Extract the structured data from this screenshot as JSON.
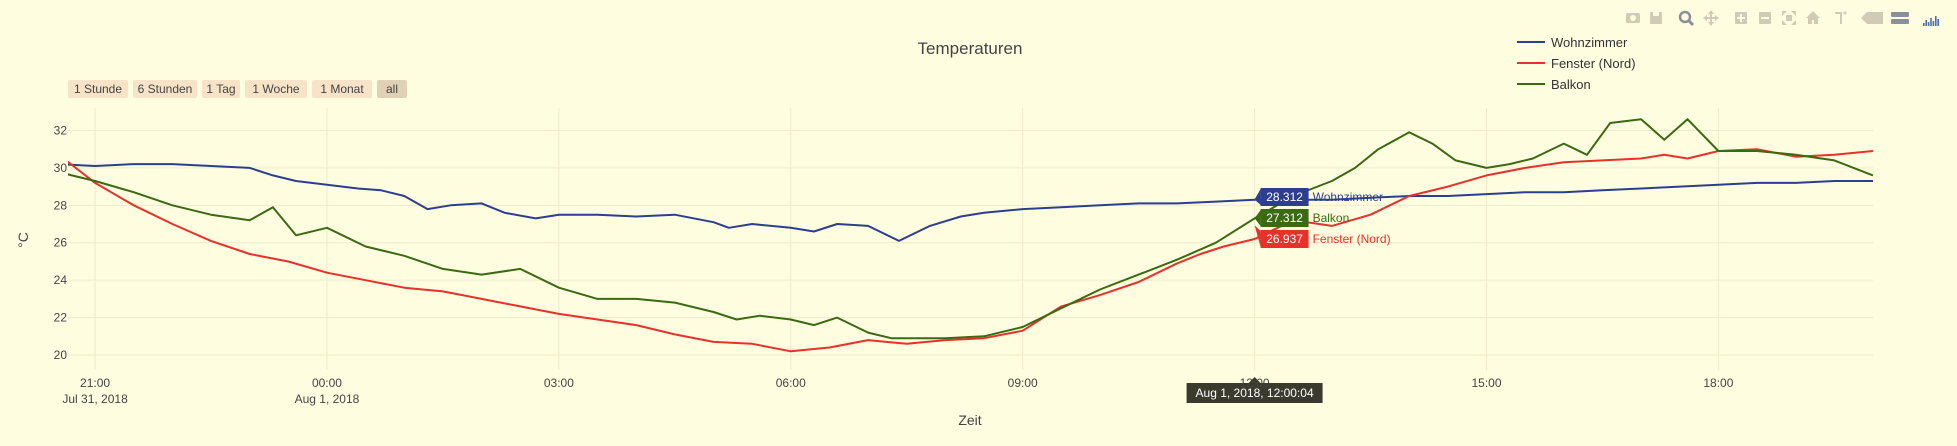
{
  "chart_data": {
    "type": "line",
    "title": "Temperaturen",
    "xlabel": "Zeit",
    "ylabel": "°C",
    "ylim": [
      19.2,
      33.2
    ],
    "xlim": [
      -0.35,
      23.0
    ],
    "y_ticks": [
      20,
      22,
      24,
      26,
      28,
      30,
      32
    ],
    "x_ticks": [
      {
        "value": 0,
        "label": "21:00",
        "sublabel": "Jul 31, 2018"
      },
      {
        "value": 3,
        "label": "00:00",
        "sublabel": "Aug 1, 2018"
      },
      {
        "value": 6,
        "label": "03:00",
        "sublabel": ""
      },
      {
        "value": 9,
        "label": "06:00",
        "sublabel": ""
      },
      {
        "value": 12,
        "label": "09:00",
        "sublabel": ""
      },
      {
        "value": 15,
        "label": "12:00",
        "sublabel": ""
      },
      {
        "value": 18,
        "label": "15:00",
        "sublabel": ""
      },
      {
        "value": 21,
        "label": "18:00",
        "sublabel": ""
      }
    ],
    "grid": true,
    "legend_position": "top-right",
    "range_buttons": [
      "1 Stunde",
      "6 Stunden",
      "1 Tag",
      "1 Woche",
      "1 Monat",
      "all"
    ],
    "active_range_button": "all",
    "hover": {
      "x_label": "Aug 1, 2018, 12:00:04",
      "x": 15.0,
      "items": [
        {
          "series": "Wohnzimmer",
          "value": "28.312",
          "y": 28.312
        },
        {
          "series": "Balkon",
          "value": "27.312",
          "y": 27.312
        },
        {
          "series": "Fenster (Nord)",
          "value": "26.937",
          "y": 26.937
        }
      ]
    },
    "series": [
      {
        "name": "Wohnzimmer",
        "color": "#2c3e8f",
        "x": [
          -0.5,
          0.0,
          0.5,
          1.0,
          1.5,
          2.0,
          2.3,
          2.6,
          3.0,
          3.4,
          3.7,
          4.0,
          4.3,
          4.6,
          5.0,
          5.3,
          5.7,
          6.0,
          6.5,
          7.0,
          7.5,
          8.0,
          8.2,
          8.5,
          9.0,
          9.3,
          9.6,
          10.0,
          10.4,
          10.8,
          11.2,
          11.5,
          12.0,
          12.5,
          13.0,
          13.5,
          14.0,
          14.5,
          15.0,
          15.5,
          16.0,
          16.5,
          17.0,
          17.5,
          18.0,
          18.5,
          19.0,
          19.5,
          20.0,
          20.5,
          21.0,
          21.5,
          22.0,
          22.5,
          23.0
        ],
        "y": [
          30.2,
          30.1,
          30.2,
          30.2,
          30.1,
          30.0,
          29.6,
          29.3,
          29.1,
          28.9,
          28.8,
          28.5,
          27.8,
          28.0,
          28.1,
          27.6,
          27.3,
          27.5,
          27.5,
          27.4,
          27.5,
          27.1,
          26.8,
          27.0,
          26.8,
          26.6,
          27.0,
          26.9,
          26.1,
          26.9,
          27.4,
          27.6,
          27.8,
          27.9,
          28.0,
          28.1,
          28.1,
          28.2,
          28.3,
          28.3,
          28.3,
          28.4,
          28.5,
          28.5,
          28.6,
          28.7,
          28.7,
          28.8,
          28.9,
          29.0,
          29.1,
          29.2,
          29.2,
          29.3,
          29.3
        ]
      },
      {
        "name": "Fenster (Nord)",
        "color": "#e8312a",
        "x": [
          -0.5,
          0.0,
          0.5,
          1.0,
          1.5,
          2.0,
          2.5,
          3.0,
          3.5,
          4.0,
          4.5,
          5.0,
          5.5,
          6.0,
          6.5,
          7.0,
          7.5,
          8.0,
          8.5,
          9.0,
          9.5,
          10.0,
          10.5,
          11.0,
          11.5,
          12.0,
          12.5,
          13.0,
          13.5,
          14.0,
          14.3,
          14.6,
          15.0,
          15.5,
          16.0,
          16.5,
          17.0,
          17.5,
          18.0,
          18.5,
          19.0,
          19.5,
          20.0,
          20.3,
          20.6,
          21.0,
          21.5,
          22.0,
          22.5,
          23.0
        ],
        "y": [
          30.8,
          29.2,
          28.0,
          27.0,
          26.1,
          25.4,
          25.0,
          24.4,
          24.0,
          23.6,
          23.4,
          23.0,
          22.6,
          22.2,
          21.9,
          21.6,
          21.1,
          20.7,
          20.6,
          20.2,
          20.4,
          20.8,
          20.6,
          20.8,
          20.9,
          21.3,
          22.6,
          23.2,
          23.9,
          24.9,
          25.4,
          25.8,
          26.2,
          27.2,
          26.9,
          27.5,
          28.5,
          29.0,
          29.6,
          30.0,
          30.3,
          30.4,
          30.5,
          30.7,
          30.5,
          30.9,
          31.0,
          30.6,
          30.7,
          30.9
        ]
      },
      {
        "name": "Balkon",
        "color": "#3a6a12",
        "x": [
          -0.5,
          0.0,
          0.5,
          1.0,
          1.5,
          2.0,
          2.3,
          2.6,
          3.0,
          3.5,
          4.0,
          4.5,
          5.0,
          5.5,
          6.0,
          6.5,
          7.0,
          7.5,
          8.0,
          8.3,
          8.6,
          9.0,
          9.3,
          9.6,
          10.0,
          10.3,
          10.6,
          11.0,
          11.5,
          12.0,
          12.5,
          13.0,
          13.5,
          14.0,
          14.5,
          15.0,
          15.5,
          16.0,
          16.3,
          16.6,
          17.0,
          17.3,
          17.6,
          18.0,
          18.3,
          18.6,
          19.0,
          19.3,
          19.6,
          20.0,
          20.3,
          20.6,
          21.0,
          21.5,
          22.0,
          22.5,
          23.0
        ],
        "y": [
          29.8,
          29.3,
          28.7,
          28.0,
          27.5,
          27.2,
          27.9,
          26.4,
          26.8,
          25.8,
          25.3,
          24.6,
          24.3,
          24.6,
          23.6,
          23.0,
          23.0,
          22.8,
          22.3,
          21.9,
          22.1,
          21.9,
          21.6,
          22.0,
          21.2,
          20.9,
          20.9,
          20.9,
          21.0,
          21.5,
          22.5,
          23.5,
          24.3,
          25.1,
          26.0,
          27.3,
          28.5,
          29.3,
          30.0,
          31.0,
          31.9,
          31.3,
          30.4,
          30.0,
          30.2,
          30.5,
          31.3,
          30.7,
          32.4,
          32.6,
          31.5,
          32.6,
          30.9,
          30.9,
          30.7,
          30.4,
          29.6
        ]
      }
    ]
  }
}
